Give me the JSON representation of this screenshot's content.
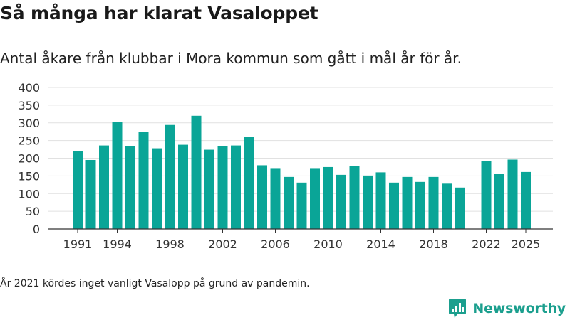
{
  "header": {
    "title": "Så många har klarat Vasaloppet",
    "subtitle": "Antal åkare från klubbar i Mora kommun som gått i mål år för år."
  },
  "footer": {
    "note": "År 2021 kördes inget vanligt Vasalopp på grund av pandemin.",
    "brand_name": "Newsworthy"
  },
  "colors": {
    "bar": "#0aa597",
    "grid": "#e1e1e1",
    "axis": "#333333",
    "brand": "#1b9f8e"
  },
  "chart_data": {
    "type": "bar",
    "title": "Så många har klarat Vasaloppet",
    "subtitle": "Antal åkare från klubbar i Mora kommun som gått i mål år för år.",
    "xlabel": "",
    "ylabel": "",
    "ylim": [
      0,
      400
    ],
    "yticks": [
      0,
      50,
      100,
      150,
      200,
      250,
      300,
      350,
      400
    ],
    "xticks": [
      1991,
      1994,
      1998,
      2002,
      2006,
      2010,
      2014,
      2018,
      2022,
      2025
    ],
    "grid": true,
    "legend": "none",
    "x": [
      1991,
      1992,
      1993,
      1994,
      1995,
      1996,
      1997,
      1998,
      1999,
      2000,
      2001,
      2002,
      2003,
      2004,
      2005,
      2006,
      2007,
      2008,
      2009,
      2010,
      2011,
      2012,
      2013,
      2014,
      2015,
      2016,
      2017,
      2018,
      2019,
      2020,
      2021,
      2022,
      2023,
      2024,
      2025
    ],
    "values": [
      221,
      195,
      236,
      302,
      234,
      274,
      228,
      294,
      238,
      320,
      224,
      234,
      236,
      260,
      180,
      172,
      147,
      131,
      172,
      175,
      153,
      177,
      151,
      160,
      131,
      147,
      133,
      147,
      128,
      117,
      null,
      192,
      155,
      196,
      161
    ]
  }
}
